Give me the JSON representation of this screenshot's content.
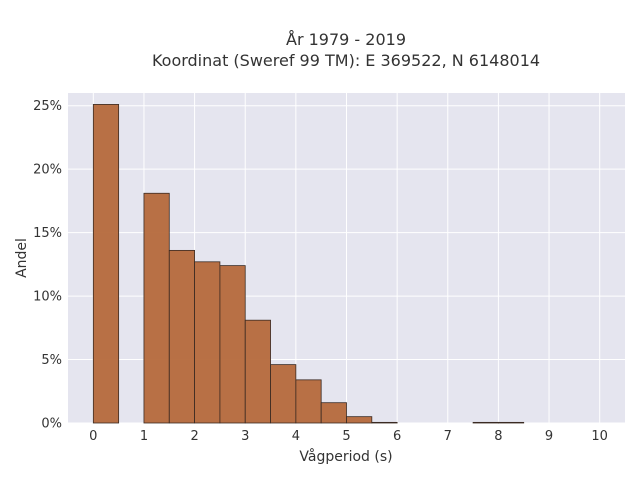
{
  "chart_data": {
    "type": "bar",
    "title_line1": "År 1979 - 2019",
    "title_line2": "Koordinat (Sweref 99 TM): E 369522, N 6148014",
    "xlabel": "Vågperiod (s)",
    "ylabel": "Andel",
    "xlim": [
      -0.5,
      10.5
    ],
    "ylim": [
      0,
      26
    ],
    "x_ticks": [
      0,
      1,
      2,
      3,
      4,
      5,
      6,
      7,
      8,
      9,
      10
    ],
    "x_tick_labels": [
      "0",
      "1",
      "2",
      "3",
      "4",
      "5",
      "6",
      "7",
      "8",
      "9",
      "10"
    ],
    "y_ticks": [
      0,
      5,
      10,
      15,
      20,
      25
    ],
    "y_tick_labels": [
      "0%",
      "5%",
      "10%",
      "15%",
      "20%",
      "25%"
    ],
    "bin_width": 0.5,
    "bins": [
      {
        "x0": 0.0,
        "value": 25.1
      },
      {
        "x0": 1.0,
        "value": 18.1
      },
      {
        "x0": 1.5,
        "value": 13.6
      },
      {
        "x0": 2.0,
        "value": 12.7
      },
      {
        "x0": 2.5,
        "value": 12.4
      },
      {
        "x0": 3.0,
        "value": 8.1
      },
      {
        "x0": 3.5,
        "value": 4.6
      },
      {
        "x0": 4.0,
        "value": 3.4
      },
      {
        "x0": 4.5,
        "value": 1.6
      },
      {
        "x0": 5.0,
        "value": 0.5
      },
      {
        "x0": 5.5,
        "value": 0.05
      },
      {
        "x0": 7.5,
        "value": 0.05
      },
      {
        "x0": 8.0,
        "value": 0.05
      }
    ],
    "grid": true,
    "colors": {
      "bar_fill": "#b5693b",
      "bar_stroke": "#3a2a22",
      "plot_bg": "#e5e5ef",
      "grid": "#ffffff"
    }
  }
}
